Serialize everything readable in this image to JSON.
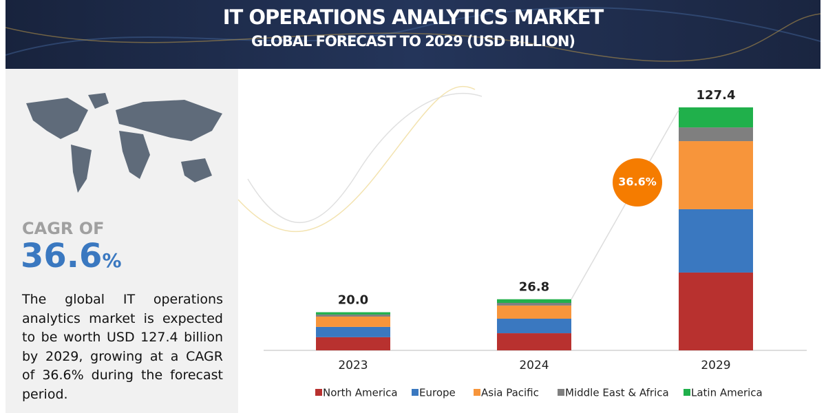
{
  "header": {
    "title": "IT OPERATIONS ANALYTICS MARKET",
    "subtitle": "GLOBAL FORECAST TO 2029 (USD BILLION)"
  },
  "sidebar": {
    "cagr_label": "CAGR OF",
    "cagr_value": "36.6",
    "cagr_unit": "%",
    "description": "The global IT operations analytics market is expected to be worth USD 127.4 billion by 2029, growing at a CAGR of 36.6% during the forecast period."
  },
  "chart_data": {
    "type": "bar",
    "stacked": true,
    "categories": [
      "2023",
      "2024",
      "2029"
    ],
    "series": [
      {
        "name": "North America",
        "color": "#b8312f",
        "values": [
          6.9,
          9.0,
          40.8
        ]
      },
      {
        "name": "Europe",
        "color": "#3a78c0",
        "values": [
          5.4,
          7.6,
          33.2
        ]
      },
      {
        "name": "Asia Pacific",
        "color": "#f7953b",
        "values": [
          5.4,
          6.9,
          35.7
        ]
      },
      {
        "name": "Middle East & Africa",
        "color": "#7f7f7f",
        "values": [
          1.1,
          1.4,
          7.2
        ]
      },
      {
        "name": "Latin America",
        "color": "#20b04b",
        "values": [
          1.2,
          1.9,
          10.5
        ]
      }
    ],
    "totals": {
      "values": [
        20,
        26.8,
        127.4
      ],
      "value_labels": [
        "20.0",
        "26.8",
        "127.4"
      ]
    },
    "annotation": "36.6%",
    "legend": "bottom"
  }
}
